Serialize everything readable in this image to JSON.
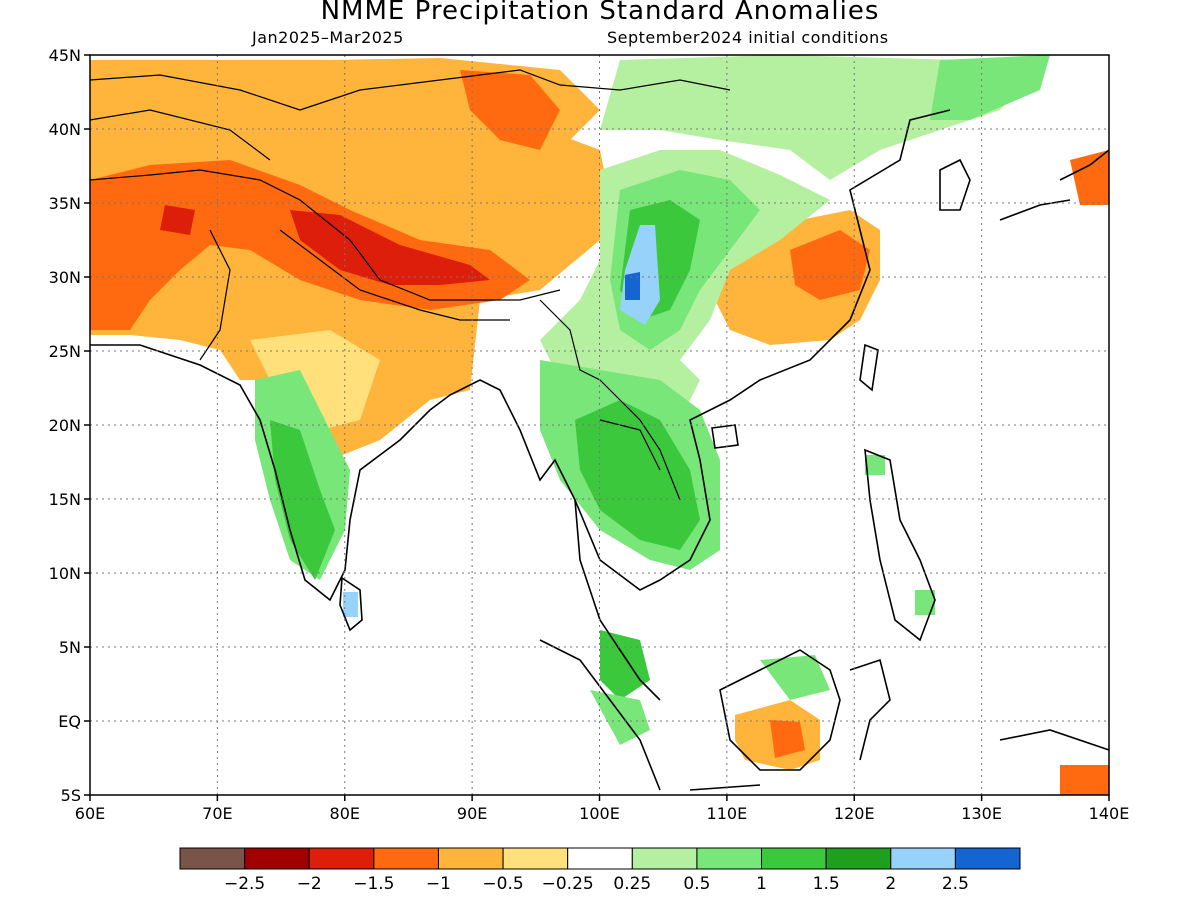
{
  "title": "NMME Precipitation Standard Anomalies",
  "subtitle_left": "Jan2025–Mar2025",
  "subtitle_right": "September2024 initial conditions",
  "map": {
    "lon_range": [
      60,
      140
    ],
    "lat_range": [
      -5,
      45
    ],
    "lat_ticks": [
      {
        "value": 45,
        "label": "45N"
      },
      {
        "value": 40,
        "label": "40N"
      },
      {
        "value": 35,
        "label": "35N"
      },
      {
        "value": 30,
        "label": "30N"
      },
      {
        "value": 25,
        "label": "25N"
      },
      {
        "value": 20,
        "label": "20N"
      },
      {
        "value": 15,
        "label": "15N"
      },
      {
        "value": 10,
        "label": "10N"
      },
      {
        "value": 5,
        "label": "5N"
      },
      {
        "value": 0,
        "label": "EQ"
      },
      {
        "value": -5,
        "label": "5S"
      }
    ],
    "lon_ticks": [
      {
        "value": 60,
        "label": "60E"
      },
      {
        "value": 70,
        "label": "70E"
      },
      {
        "value": 80,
        "label": "80E"
      },
      {
        "value": 90,
        "label": "90E"
      },
      {
        "value": 100,
        "label": "100E"
      },
      {
        "value": 110,
        "label": "110E"
      },
      {
        "value": 120,
        "label": "120E"
      },
      {
        "value": 130,
        "label": "130E"
      },
      {
        "value": 140,
        "label": "140E"
      }
    ],
    "gridlines": "dotted"
  },
  "colorbar": {
    "colors": [
      "#7a5448",
      "#a00000",
      "#dc1e0a",
      "#ff6a10",
      "#ffb43c",
      "#ffe07a",
      "#ffffff",
      "#b4f0a0",
      "#78e678",
      "#3cc83c",
      "#1ea01e",
      "#96d2fa",
      "#1464d2"
    ],
    "labels": [
      "−2.5",
      "−2",
      "−1.5",
      "−1",
      "−0.5",
      "−0.25",
      "0.25",
      "0.5",
      "1",
      "1.5",
      "2",
      "2.5"
    ]
  }
}
